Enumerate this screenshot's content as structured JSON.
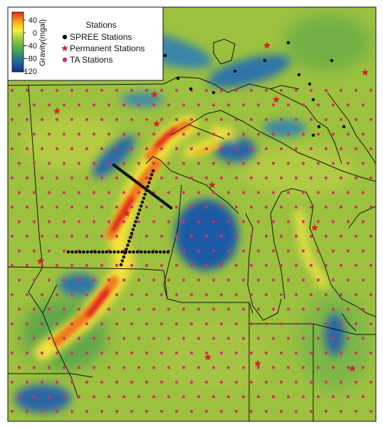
{
  "colorbar": {
    "title": "Gravity(mgal)",
    "ticks": [
      "40",
      "0",
      "−40",
      "−80",
      "−120"
    ],
    "colors": [
      "#e3231c",
      "#f6b51b",
      "#f6ef3a",
      "#7fc242",
      "#3d9a55",
      "#1d5fa8",
      "#13307e"
    ]
  },
  "legend": {
    "title": "Stations",
    "items": [
      {
        "label": "SPREE Stations",
        "marker": "dot",
        "color": "#111111"
      },
      {
        "label": "Permanent Stations",
        "marker": "star",
        "color": "#d0242a"
      },
      {
        "label": "TA Stations",
        "marker": "dot",
        "color": "#d63068"
      }
    ]
  },
  "colors": {
    "base": "#9cc13f",
    "spree": "#111111",
    "permanent": "#d0242a",
    "ta": "#d63068",
    "border": "#111111"
  }
}
